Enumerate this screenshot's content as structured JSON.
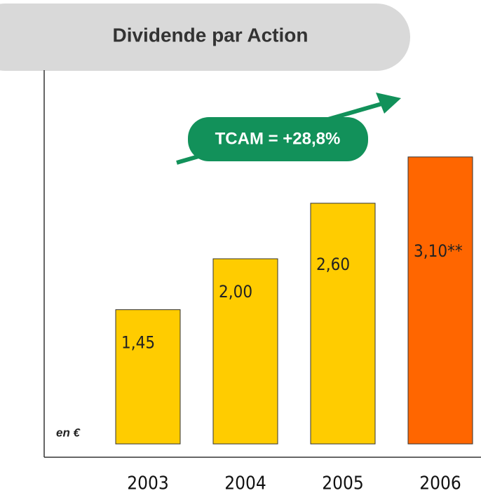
{
  "chart_data": {
    "type": "bar",
    "title": "Dividende par Action",
    "annotation": "TCAM = +28,8%",
    "unit_label": "en €",
    "categories": [
      "2003",
      "2004",
      "2005",
      "2006"
    ],
    "values": [
      1.45,
      2.0,
      2.6,
      3.1
    ],
    "value_labels": [
      "1,45",
      "2,00",
      "2,60",
      "3,10**"
    ],
    "colors": [
      "#FFCC00",
      "#FFCC00",
      "#FFCC00",
      "#FF6600"
    ]
  }
}
